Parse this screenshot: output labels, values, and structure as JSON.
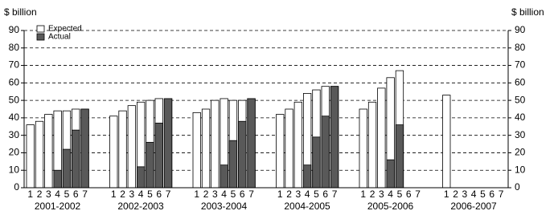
{
  "chart_data": {
    "type": "bar",
    "y_label": "$ billion",
    "categories": [
      "2001-2002",
      "2002-2003",
      "2003-2004",
      "2004-2005",
      "2005-2006",
      "2006-2007"
    ],
    "positions": [
      "1",
      "2",
      "3",
      "4",
      "5",
      "6",
      "7"
    ],
    "series": [
      {
        "name": "Expected",
        "color": "#ffffff",
        "values": [
          [
            36,
            38,
            42,
            44,
            44,
            45,
            45
          ],
          [
            41,
            44,
            47,
            49,
            50,
            51,
            51
          ],
          [
            43,
            45,
            50,
            51,
            50,
            50,
            51
          ],
          [
            42,
            45,
            49,
            54,
            56,
            58,
            58
          ],
          [
            45,
            49,
            57,
            63,
            67,
            null,
            null
          ],
          [
            53,
            null,
            null,
            null,
            null,
            null,
            null
          ]
        ]
      },
      {
        "name": "Actual",
        "color": "#595959",
        "values": [
          [
            null,
            null,
            null,
            10,
            22,
            33,
            45
          ],
          [
            null,
            null,
            null,
            12,
            26,
            37,
            51
          ],
          [
            null,
            null,
            null,
            13,
            27,
            38,
            51
          ],
          [
            null,
            null,
            null,
            13,
            29,
            41,
            58
          ],
          [
            null,
            null,
            null,
            16,
            36,
            null,
            null
          ],
          [
            null,
            null,
            null,
            null,
            null,
            null,
            null
          ]
        ]
      }
    ],
    "ylim": [
      0,
      90
    ],
    "yticks": [
      0,
      10,
      20,
      30,
      40,
      50,
      60,
      70,
      80,
      90
    ],
    "y2lim": [
      0,
      90
    ],
    "y2ticks": [
      0,
      10,
      20,
      30,
      40,
      50,
      60,
      70,
      80,
      90
    ],
    "grid": true
  }
}
